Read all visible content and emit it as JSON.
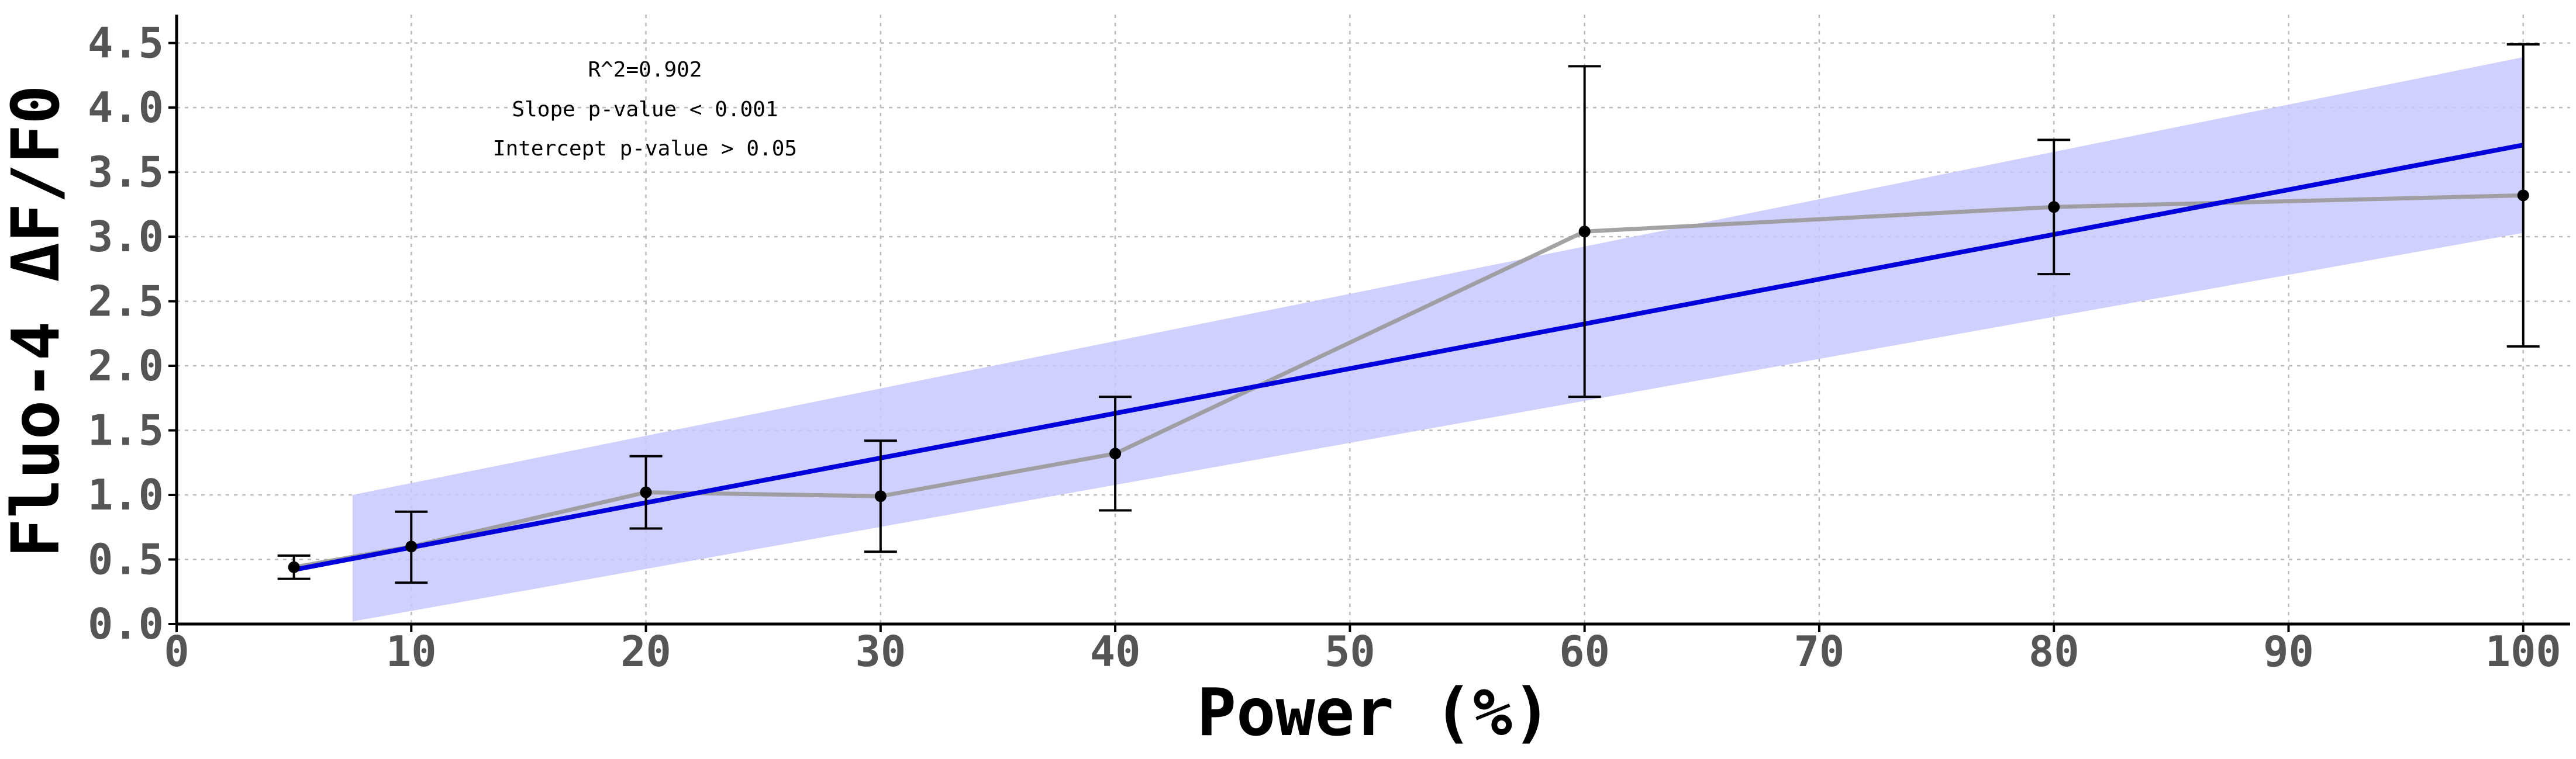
{
  "chart_data": {
    "type": "line",
    "xlabel": "Power (%)",
    "ylabel": "Fluo-4 ΔF/F0",
    "xlim": [
      0,
      102
    ],
    "ylim": [
      0,
      4.72
    ],
    "xticks": [
      0,
      10,
      20,
      30,
      40,
      50,
      60,
      70,
      80,
      90,
      100
    ],
    "yticks": [
      0.0,
      0.5,
      1.0,
      1.5,
      2.0,
      2.5,
      3.0,
      3.5,
      4.0,
      4.5
    ],
    "xtick_labels": [
      "0",
      "10",
      "20",
      "30",
      "40",
      "50",
      "60",
      "70",
      "80",
      "90",
      "100"
    ],
    "ytick_labels": [
      "0.0",
      "0.5",
      "1.0",
      "1.5",
      "2.0",
      "2.5",
      "3.0",
      "3.5",
      "4.0",
      "4.5"
    ],
    "grid": true,
    "series": [
      {
        "x": [
          5,
          10,
          20,
          30,
          40,
          60,
          80,
          100
        ],
        "y": [
          0.44,
          0.6,
          1.02,
          0.99,
          1.32,
          3.04,
          3.23,
          3.32
        ],
        "yerr_low": [
          0.35,
          0.32,
          0.74,
          0.56,
          0.88,
          1.76,
          2.71,
          2.15
        ],
        "yerr_high": [
          0.53,
          0.87,
          1.3,
          1.42,
          1.76,
          4.32,
          3.75,
          4.49
        ],
        "color": "#999999",
        "marker_color": "#000000"
      }
    ],
    "fit": {
      "x": [
        5,
        100
      ],
      "y": [
        0.42,
        3.71
      ],
      "color": "#0000dd",
      "band": {
        "x": [
          7.5,
          100
        ],
        "lower": [
          0.02,
          3.03
        ],
        "upper": [
          1.0,
          4.39
        ],
        "color": "#c8c8ff"
      }
    },
    "annotations": [
      "R^2=0.902",
      "Slope p-value < 0.001",
      "Intercept p-value > 0.05"
    ]
  }
}
